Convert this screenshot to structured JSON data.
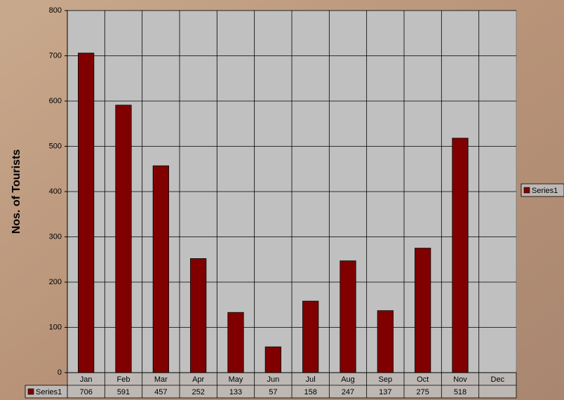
{
  "chart_data": {
    "type": "bar",
    "y_label": "Nos. of Tourists",
    "categories": [
      "Jan",
      "Feb",
      "Mar",
      "Apr",
      "May",
      "Jun",
      "Jul",
      "Aug",
      "Sep",
      "Oct",
      "Nov",
      "Dec"
    ],
    "series": [
      {
        "name": "Series1",
        "color": "#800000",
        "values": [
          706,
          591,
          457,
          252,
          133,
          57,
          158,
          247,
          137,
          275,
          518,
          null
        ]
      }
    ],
    "ylim": [
      0,
      800
    ],
    "yticks": [
      0,
      100,
      200,
      300,
      400,
      500,
      600,
      700,
      800
    ],
    "grid": true,
    "legend": "right",
    "data_table": true
  }
}
